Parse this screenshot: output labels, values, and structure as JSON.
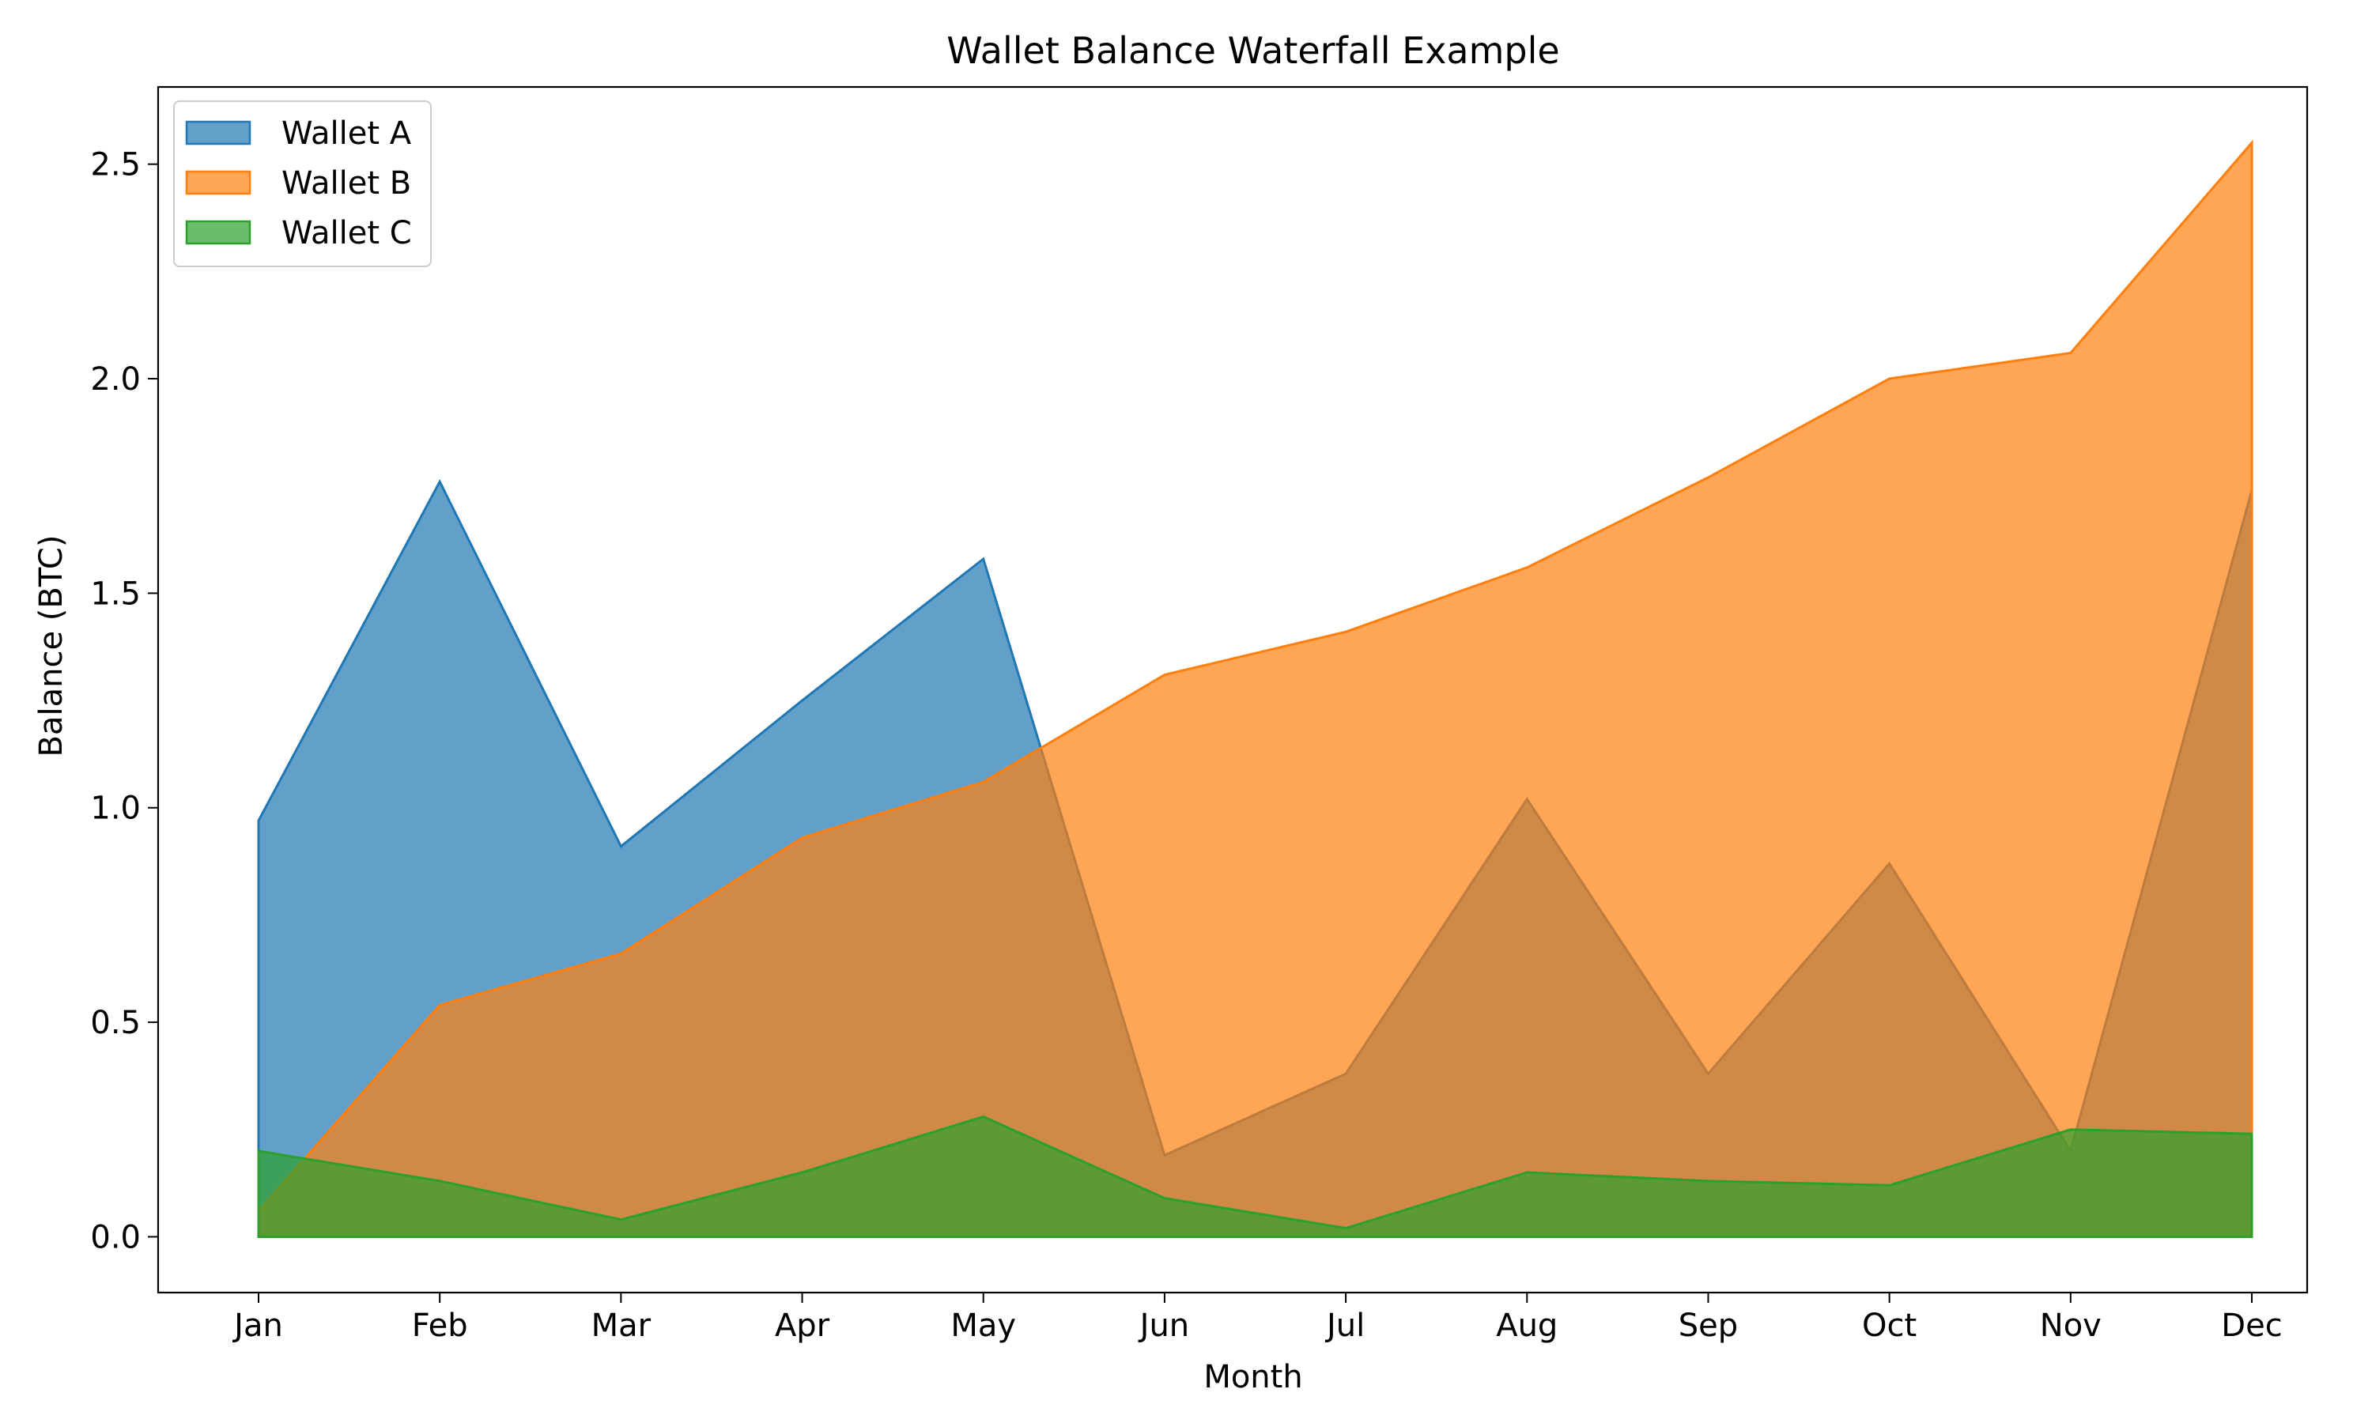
{
  "chart_data": {
    "type": "area",
    "title": "Wallet Balance Waterfall Example",
    "xlabel": "Month",
    "ylabel": "Balance (BTC)",
    "categories": [
      "Jan",
      "Feb",
      "Mar",
      "Apr",
      "May",
      "Jun",
      "Jul",
      "Aug",
      "Sep",
      "Oct",
      "Nov",
      "Dec"
    ],
    "ylim": [
      -0.13,
      2.68
    ],
    "yticks": [
      0.0,
      0.5,
      1.0,
      1.5,
      2.0,
      2.5
    ],
    "ytick_labels": [
      "0.0",
      "0.5",
      "1.0",
      "1.5",
      "2.0",
      "2.5"
    ],
    "grid": false,
    "legend_position": "top-left",
    "series": [
      {
        "name": "Wallet A",
        "color": "#1f77b4",
        "values": [
          0.97,
          1.76,
          0.91,
          1.25,
          1.58,
          0.19,
          0.38,
          1.02,
          0.38,
          0.87,
          0.2,
          1.74
        ]
      },
      {
        "name": "Wallet B",
        "color": "#ff7f0e",
        "values": [
          0.06,
          0.54,
          0.66,
          0.93,
          1.06,
          1.31,
          1.41,
          1.56,
          1.77,
          2.0,
          2.06,
          2.55
        ]
      },
      {
        "name": "Wallet C",
        "color": "#2ca02c",
        "values": [
          0.2,
          0.13,
          0.04,
          0.15,
          0.28,
          0.09,
          0.02,
          0.15,
          0.13,
          0.12,
          0.25,
          0.24
        ]
      }
    ]
  }
}
